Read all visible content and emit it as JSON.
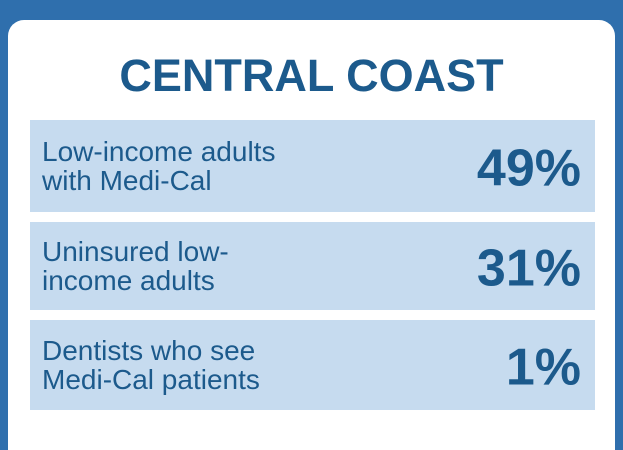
{
  "header": {
    "title": "CENTRAL COAST"
  },
  "rows": [
    {
      "label_lines": [
        "Low-income adults",
        "with Medi-Cal"
      ],
      "value": "49%"
    },
    {
      "label_lines": [
        "Uninsured low-",
        "income adults"
      ],
      "value": "31%"
    },
    {
      "label_lines": [
        "Dentists who see",
        "Medi-Cal patients"
      ],
      "value": "1%"
    }
  ]
}
